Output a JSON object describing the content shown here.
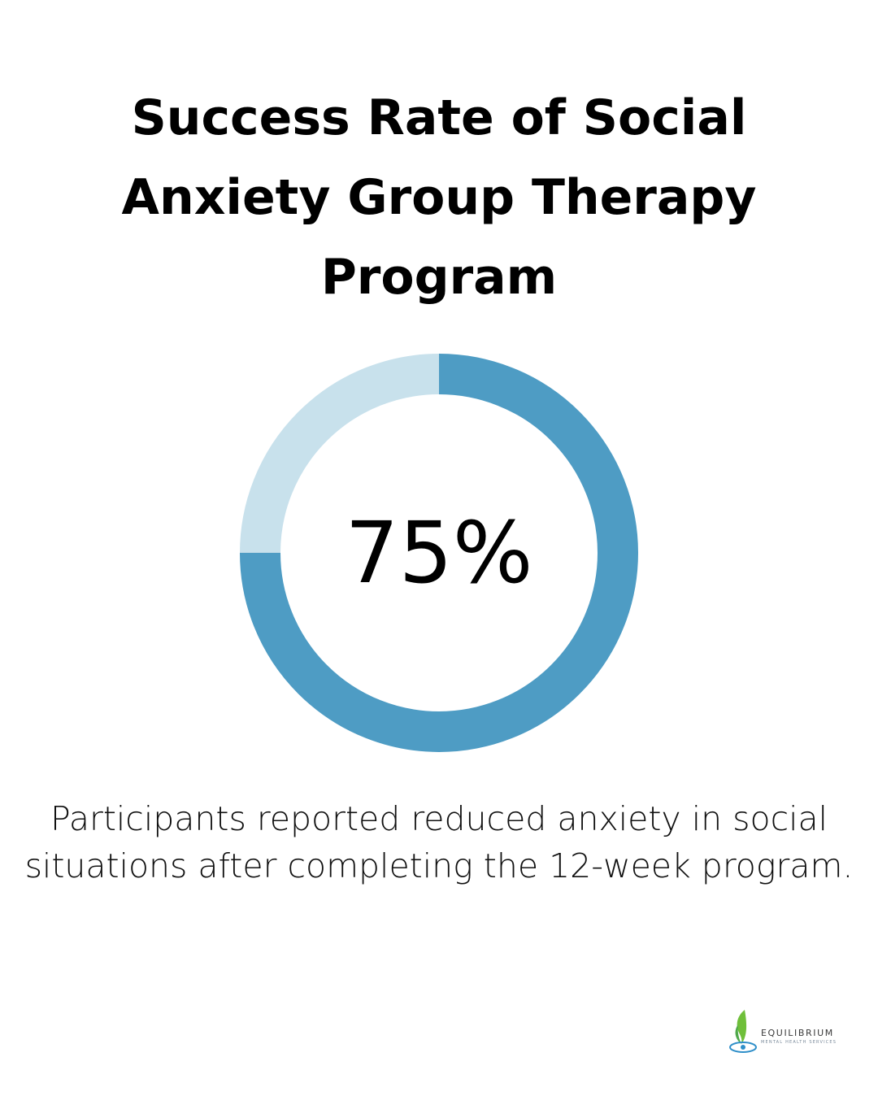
{
  "header": {
    "title": "Success Rate of Social Anxiety Group Therapy Program"
  },
  "chart_data": {
    "type": "pie",
    "style": "donut",
    "value_label": "75%",
    "values": [
      75,
      25
    ],
    "colors": {
      "filled": "#4e9cc4",
      "remaining": "#c8e1ec"
    }
  },
  "body": {
    "description": "Participants reported reduced anxiety in social situations after completing the 12-week program."
  },
  "brand": {
    "name": "EQUILIBRIUM",
    "tagline": "MENTAL HEALTH SERVICES",
    "colors": {
      "leaf": "#6fbf3a",
      "drop": "#2f8fc9"
    }
  }
}
